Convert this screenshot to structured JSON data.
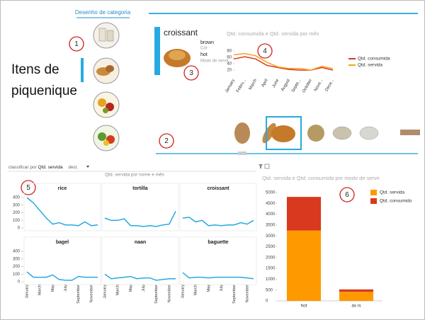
{
  "tab": "Desenho de categoria",
  "category_title": "Itens de piquenique",
  "annotations": [
    1,
    2,
    3,
    4,
    5,
    6
  ],
  "card": {
    "title": "croissant",
    "color": "brown",
    "color_label": "Cor",
    "mode": "hot",
    "mode_label": "Modo de servir"
  },
  "sort": {
    "label": "classificar por",
    "field": "Qtd. servida",
    "order": "decr."
  },
  "chart_data": [
    {
      "type": "line",
      "title": "Qtd. consumida e Qtd. servida por mês",
      "categories": [
        "January",
        "Febru...",
        "March",
        "April",
        "June",
        "August",
        "Septe...",
        "October",
        "Nove...",
        "Dece..."
      ],
      "ylim": [
        0,
        100
      ],
      "yticks": [
        20,
        40,
        60,
        80
      ],
      "series": [
        {
          "name": "Qtd. consumida",
          "color": "#d9391e",
          "values": [
            55,
            62,
            55,
            35,
            28,
            22,
            20,
            20,
            28,
            20
          ]
        },
        {
          "name": "Qtd. servida",
          "color": "#f7a11a",
          "values": [
            68,
            72,
            65,
            45,
            30,
            25,
            25,
            20,
            32,
            25
          ]
        }
      ]
    },
    {
      "type": "small_multiples",
      "title": "Qtd. servida por nome e mês",
      "categories": [
        "January",
        null,
        "March",
        null,
        "May",
        null,
        "July",
        null,
        "September",
        null,
        "November",
        null
      ],
      "ylim": [
        0,
        400
      ],
      "yticks": [
        0,
        100,
        200,
        300,
        400
      ],
      "series": [
        {
          "name": "rice",
          "color": "#27a9e1",
          "values": [
            400,
            330,
            230,
            130,
            50,
            70,
            40,
            40,
            30,
            80,
            30,
            40
          ]
        },
        {
          "name": "tortilla",
          "color": "#27a9e1",
          "values": [
            130,
            100,
            100,
            120,
            30,
            30,
            20,
            30,
            20,
            40,
            50,
            220
          ]
        },
        {
          "name": "croissant",
          "color": "#27a9e1",
          "values": [
            130,
            140,
            80,
            100,
            30,
            40,
            30,
            40,
            40,
            70,
            50,
            100
          ]
        },
        {
          "name": "bagel",
          "color": "#27a9e1",
          "values": [
            130,
            60,
            60,
            60,
            90,
            30,
            20,
            20,
            70,
            60,
            60,
            60
          ]
        },
        {
          "name": "naan",
          "color": "#27a9e1",
          "values": [
            100,
            40,
            50,
            60,
            70,
            40,
            50,
            50,
            20,
            30,
            40,
            40
          ]
        },
        {
          "name": "baguette",
          "color": "#27a9e1",
          "values": [
            120,
            50,
            60,
            60,
            50,
            60,
            60,
            60,
            60,
            60,
            50,
            40
          ]
        }
      ]
    },
    {
      "type": "stacked_bar",
      "title": "Qtd. servida e Qtd. consumida por modo de servir",
      "categories": [
        "hot",
        "as is"
      ],
      "ylim": [
        0,
        5000
      ],
      "yticks": [
        0,
        500,
        1000,
        1500,
        2000,
        2500,
        3000,
        3500,
        4000,
        4500,
        5000
      ],
      "series": [
        {
          "name": "Qtd. servida",
          "color": "#ff9900",
          "values": [
            3250,
            420
          ]
        },
        {
          "name": "Qtd. consumido",
          "color": "#d9391e",
          "values": [
            1550,
            110
          ]
        }
      ]
    }
  ]
}
